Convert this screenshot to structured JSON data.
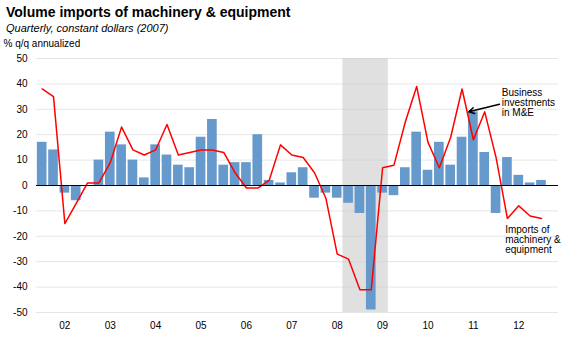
{
  "chart_data": {
    "type": "bar",
    "title": "Volume imports of machinery & equipment",
    "subtitle": "Quarterly, constant dollars (2007)",
    "ylabel": "% q/q annualized",
    "categories": [
      null,
      null,
      "02",
      null,
      null,
      null,
      "03",
      null,
      null,
      null,
      "04",
      null,
      null,
      null,
      "05",
      null,
      null,
      null,
      "06",
      null,
      null,
      null,
      "07",
      null,
      null,
      null,
      "08",
      null,
      null,
      null,
      "09",
      null,
      null,
      null,
      "10",
      null,
      null,
      null,
      "11",
      null,
      null,
      null,
      "12",
      null,
      null
    ],
    "series": [
      {
        "type": "bar",
        "color": "#6699cc",
        "values": [
          17,
          14,
          -3,
          -6,
          0,
          10,
          21,
          16,
          10,
          3,
          16,
          12,
          8,
          7,
          19,
          26,
          8,
          9,
          9,
          20,
          2,
          1,
          5,
          7,
          -5,
          -3,
          -5,
          -7,
          -11,
          -49,
          -3,
          -4,
          7,
          21,
          6,
          17,
          8,
          19,
          29,
          13,
          -11,
          11,
          4,
          1,
          2
        ]
      },
      {
        "type": "line",
        "color": "#ff0000",
        "values": [
          38,
          35,
          -15,
          -7,
          1,
          1,
          9,
          23,
          14,
          12,
          14,
          24,
          12,
          13,
          14,
          14,
          13,
          5,
          -1,
          -1,
          2,
          16,
          12,
          11,
          5,
          -5,
          -27,
          -29,
          -41,
          -41,
          7,
          8,
          25,
          39,
          17,
          7,
          19,
          38,
          18,
          29,
          11,
          -13,
          -8,
          -12,
          -13
        ]
      }
    ],
    "recession_start": 26.5,
    "recession_end": 30.5,
    "annotations": [
      "Business\ninvestments\nin M&E",
      "Imports of\nmachinery &\nequipment"
    ],
    "ylim": [
      -50,
      50
    ],
    "yticks": [
      -50,
      -40,
      -30,
      -20,
      -10,
      0,
      10,
      20,
      30,
      40,
      50
    ],
    "grid": true
  }
}
